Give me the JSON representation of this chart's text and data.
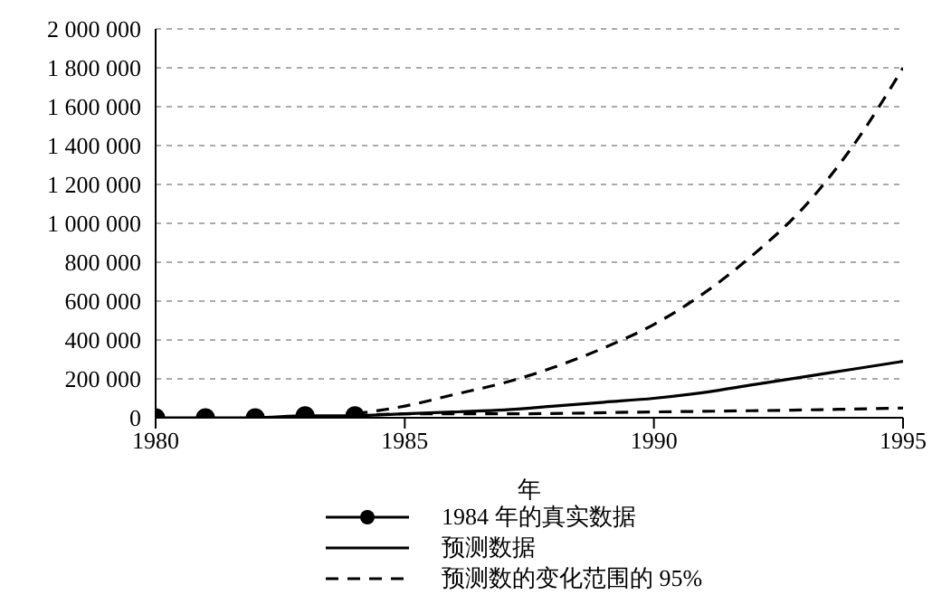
{
  "chart_data": {
    "type": "line",
    "xlabel": "年",
    "xlim": [
      1980,
      1995
    ],
    "xticks": [
      1980,
      1985,
      1990,
      1995
    ],
    "ylim": [
      0,
      2000000
    ],
    "yticks": [
      0,
      {
        "value": 200000,
        "label": "200 000"
      },
      {
        "value": 400000,
        "label": "400 000"
      },
      {
        "value": 600000,
        "label": "600 000"
      },
      {
        "value": 800000,
        "label": "800 000"
      },
      {
        "value": 1000000,
        "label": "1 000 000"
      },
      {
        "value": 1200000,
        "label": "1 200 000"
      },
      {
        "value": 1400000,
        "label": "1 400 000"
      },
      {
        "value": 1600000,
        "label": "1 600 000"
      },
      {
        "value": 1800000,
        "label": "1 800 000"
      },
      {
        "value": 2000000,
        "label": "2 000 000"
      }
    ],
    "grid": "y",
    "legend": "bottom",
    "series": [
      {
        "name": "1984 年的真实数据",
        "color": "#000000",
        "marker": "circle",
        "line_style": "solid",
        "x": [
          1980,
          1981,
          1982,
          1983,
          1984
        ],
        "values": [
          0,
          0,
          0,
          10000,
          10000
        ]
      },
      {
        "name": "预测数据",
        "color": "#000000",
        "marker": "none",
        "line_style": "solid",
        "x": [
          1984,
          1985,
          1986,
          1987,
          1988,
          1989,
          1990,
          1991,
          1992,
          1993,
          1994,
          1995
        ],
        "values": [
          10000,
          20000,
          30000,
          40000,
          60000,
          80000,
          100000,
          130000,
          170000,
          210000,
          250000,
          290000
        ]
      },
      {
        "name": "预测数的变化范围的 95%",
        "color": "#000000",
        "marker": "none",
        "line_style": "dashed",
        "x": [
          1984,
          1985,
          1986,
          1987,
          1988,
          1989,
          1990,
          1991,
          1992,
          1993,
          1994,
          1995
        ],
        "values": [
          20000,
          60000,
          120000,
          180000,
          260000,
          360000,
          480000,
          640000,
          840000,
          1080000,
          1400000,
          1800000
        ]
      },
      {
        "color": "#000000",
        "marker": "none",
        "line_style": "dashed",
        "x": [
          1984,
          1985,
          1987,
          1990,
          1993,
          1995
        ],
        "values": [
          10000,
          20000,
          20000,
          30000,
          40000,
          50000
        ]
      }
    ]
  }
}
